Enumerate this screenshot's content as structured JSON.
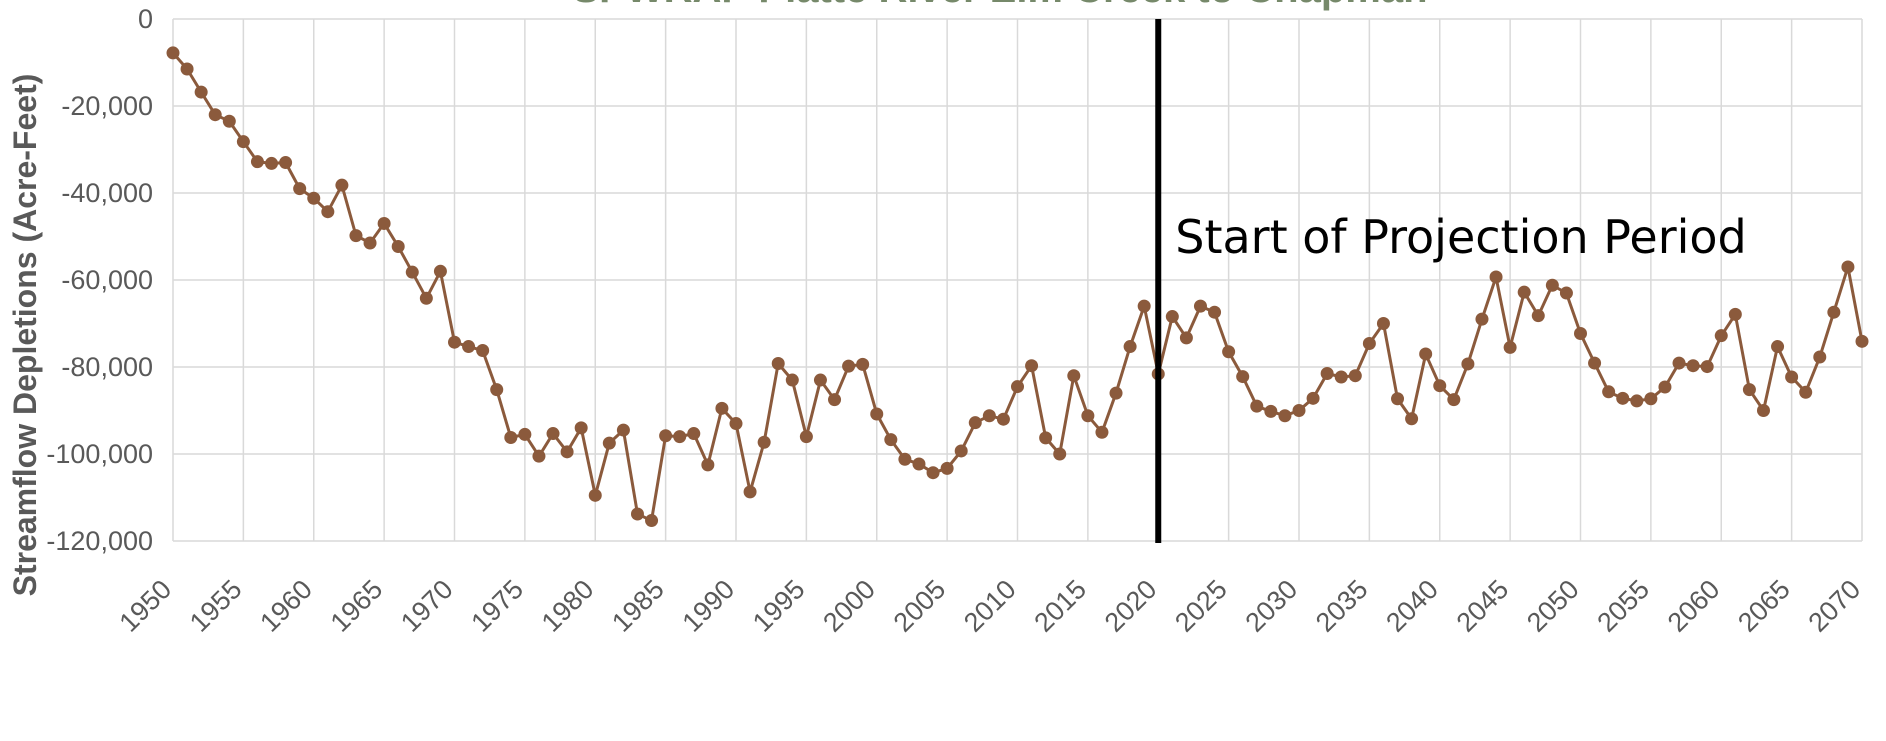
{
  "chart_data": {
    "type": "line",
    "title": "SPWRAP Platte River Elm Creek to Chapman",
    "xlabel": "",
    "ylabel": "Streamflow Depletions (Acre-Feet)",
    "xlim": [
      1950,
      2070
    ],
    "ylim": [
      -120000,
      0
    ],
    "x_ticks": [
      1950,
      1955,
      1960,
      1965,
      1970,
      1975,
      1980,
      1985,
      1990,
      1995,
      2000,
      2005,
      2010,
      2015,
      2020,
      2025,
      2030,
      2035,
      2040,
      2045,
      2050,
      2055,
      2060,
      2065,
      2070
    ],
    "y_ticks": [
      {
        "value": 0,
        "label": "0"
      },
      {
        "value": -20000,
        "label": "-20,000"
      },
      {
        "value": -40000,
        "label": "-40,000"
      },
      {
        "value": -60000,
        "label": "-60,000"
      },
      {
        "value": -80000,
        "label": "-80,000"
      },
      {
        "value": -100000,
        "label": "-100,000"
      },
      {
        "value": -120000,
        "label": "-120,000"
      }
    ],
    "grid": true,
    "series": [
      {
        "color": "#8b5a3c",
        "x": [
          1950,
          1951,
          1952,
          1953,
          1954,
          1955,
          1956,
          1957,
          1958,
          1959,
          1960,
          1961,
          1962,
          1963,
          1964,
          1965,
          1966,
          1967,
          1968,
          1969,
          1970,
          1971,
          1972,
          1973,
          1974,
          1975,
          1976,
          1977,
          1978,
          1979,
          1980,
          1981,
          1982,
          1983,
          1984,
          1985,
          1986,
          1987,
          1988,
          1989,
          1990,
          1991,
          1992,
          1993,
          1994,
          1995,
          1996,
          1997,
          1998,
          1999,
          2000,
          2001,
          2002,
          2003,
          2004,
          2005,
          2006,
          2007,
          2008,
          2009,
          2010,
          2011,
          2012,
          2013,
          2014,
          2015,
          2016,
          2017,
          2018,
          2019,
          2020,
          2021,
          2022,
          2023,
          2024,
          2025,
          2026,
          2027,
          2028,
          2029,
          2030,
          2031,
          2032,
          2033,
          2034,
          2035,
          2036,
          2037,
          2038,
          2039,
          2040,
          2041,
          2042,
          2043,
          2044,
          2045,
          2046,
          2047,
          2048,
          2049,
          2050,
          2051,
          2052,
          2053,
          2054,
          2055,
          2056,
          2057,
          2058,
          2059,
          2060,
          2061,
          2062,
          2063,
          2064,
          2065,
          2066,
          2067,
          2068,
          2069,
          2070
        ],
        "y": [
          -7800,
          -11500,
          -16800,
          -22000,
          -23500,
          -28200,
          -32800,
          -33200,
          -33000,
          -39000,
          -41200,
          -44300,
          -38200,
          -49800,
          -51500,
          -47000,
          -52300,
          -58200,
          -64200,
          -58000,
          -74300,
          -75300,
          -76200,
          -85200,
          -96200,
          -95500,
          -100500,
          -95300,
          -99500,
          -94000,
          -109500,
          -97500,
          -94500,
          -113800,
          -115300,
          -95800,
          -96000,
          -95300,
          -102500,
          -89500,
          -93000,
          -108700,
          -97300,
          -79200,
          -83000,
          -96000,
          -83000,
          -87500,
          -79800,
          -79400,
          -90800,
          -96700,
          -101200,
          -102300,
          -104300,
          -103300,
          -99300,
          -92800,
          -91200,
          -92000,
          -84500,
          -79700,
          -96300,
          -100000,
          -82000,
          -91200,
          -95000,
          -86000,
          -75300,
          -66000,
          -81600,
          -68400,
          -73300,
          -66000,
          -67400,
          -76500,
          -82200,
          -89000,
          -90200,
          -91200,
          -90000,
          -87200,
          -81500,
          -82300,
          -82000,
          -74600,
          -70000,
          -87300,
          -91900,
          -77000,
          -84300,
          -87500,
          -79300,
          -69000,
          -59300,
          -75500,
          -62800,
          -68200,
          -61200,
          -63000,
          -72300,
          -79100,
          -85700,
          -87200,
          -87800,
          -87300,
          -84600,
          -79100,
          -79700,
          -79900,
          -72800,
          -67900,
          -85200,
          -90000,
          -75300,
          -82300,
          -85800,
          -77700,
          -67400,
          -57000,
          -74100
        ]
      }
    ],
    "annotations": [
      {
        "x": 2020,
        "text": "Start of Projection Period"
      }
    ]
  }
}
